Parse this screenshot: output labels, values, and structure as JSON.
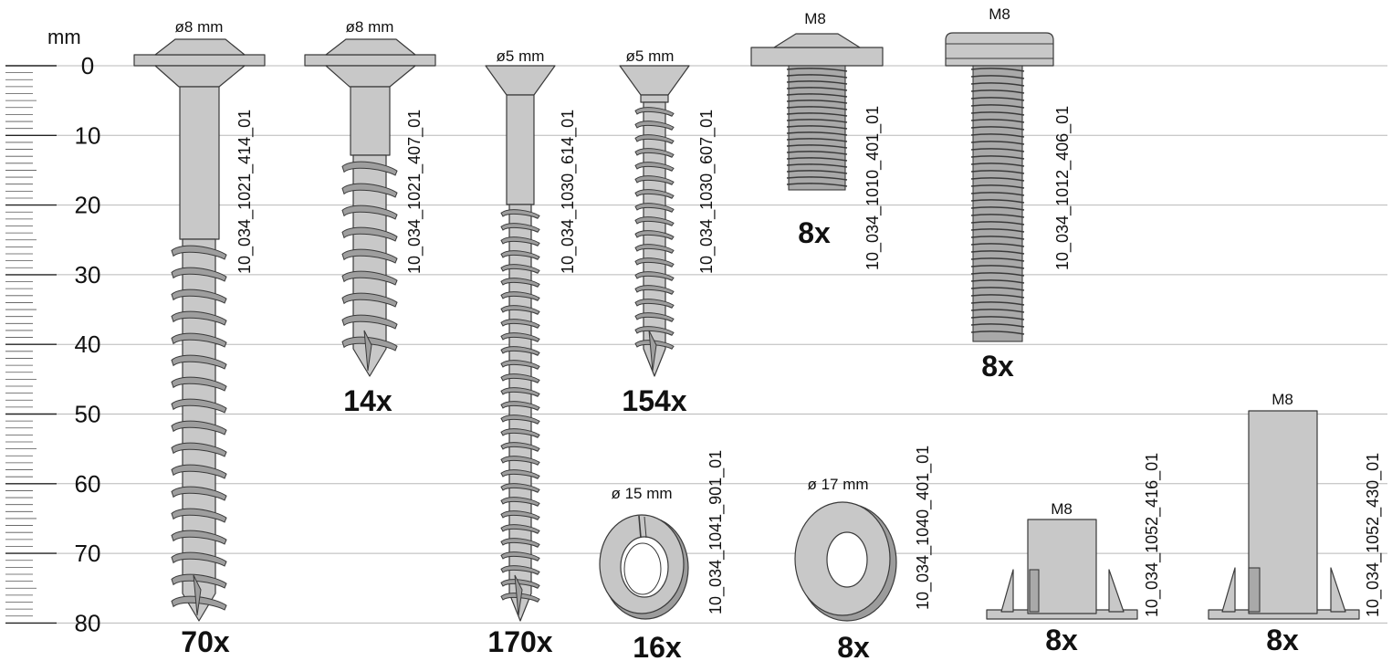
{
  "scale": {
    "unit": "mm",
    "ticks": [
      "0",
      "10",
      "20",
      "30",
      "40",
      "50",
      "60",
      "70",
      "80"
    ]
  },
  "parts": [
    {
      "id": "screw-a",
      "dimension": "ø8 mm",
      "code": "10_034_1021_414_01",
      "quantity": "70x"
    },
    {
      "id": "screw-b",
      "dimension": "ø8 mm",
      "code": "10_034_1021_407_01",
      "quantity": "14x"
    },
    {
      "id": "screw-c",
      "dimension": "ø5 mm",
      "code": "10_034_1030_614_01",
      "quantity": "170x"
    },
    {
      "id": "screw-d",
      "dimension": "ø5 mm",
      "code": "10_034_1030_607_01",
      "quantity": "154x"
    },
    {
      "id": "bolt-short",
      "dimension": "M8",
      "code": "10_034_1010_401_01",
      "quantity": "8x"
    },
    {
      "id": "bolt-long",
      "dimension": "M8",
      "code": "10_034_1012_406_01",
      "quantity": "8x"
    },
    {
      "id": "split-washer",
      "dimension": "ø 15 mm",
      "code": "10_034_1041_901_01",
      "quantity": "16x"
    },
    {
      "id": "flat-washer",
      "dimension": "ø 17 mm",
      "code": "10_034_1040_401_01",
      "quantity": "8x"
    },
    {
      "id": "insert-short",
      "dimension": "M8",
      "code": "10_034_1052_416_01",
      "quantity": "8x"
    },
    {
      "id": "insert-long",
      "dimension": "M8",
      "code": "10_034_1052_430_01",
      "quantity": "8x"
    }
  ]
}
